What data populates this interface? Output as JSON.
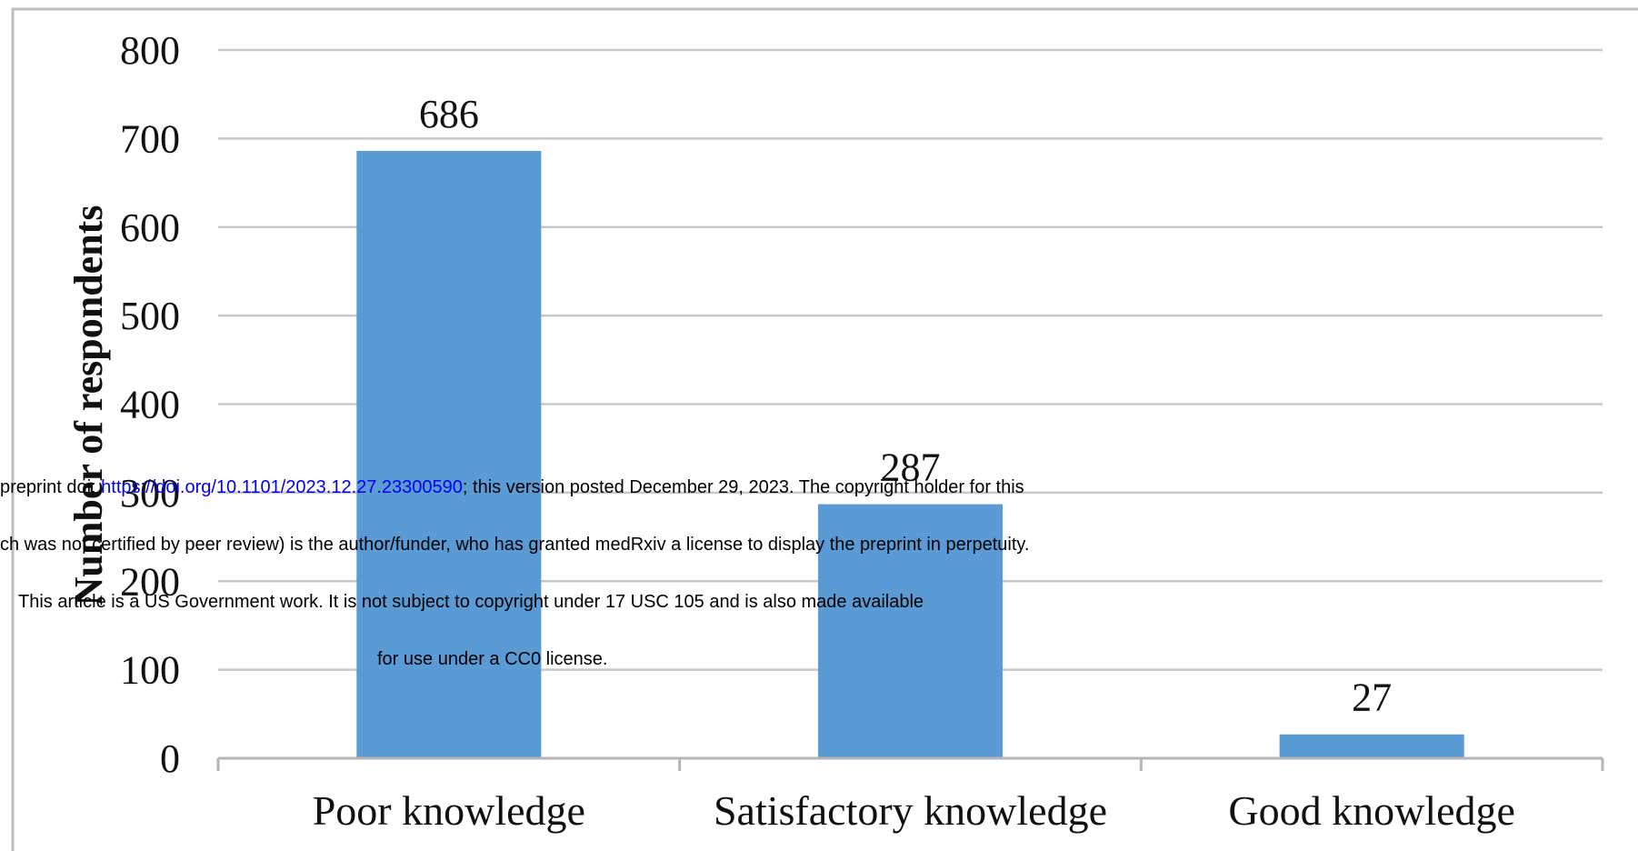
{
  "chart_data": {
    "type": "bar",
    "categories": [
      "Poor knowledge",
      "Satisfactory knowledge",
      "Good knowledge"
    ],
    "values": [
      686,
      287,
      27
    ],
    "data_labels": [
      "686",
      "287",
      "27"
    ],
    "ylabel": "Number of respondents",
    "xlabel": "",
    "ylim": [
      0,
      800
    ],
    "yticks": [
      0,
      100,
      200,
      300,
      400,
      500,
      600,
      700,
      800
    ],
    "grid": true,
    "bar_color": "#5b9bd5"
  },
  "watermark": {
    "line1_prefix": "preprint doi: ",
    "line1_link": "https://doi.org/10.1101/2023.12.27.23300590",
    "line1_suffix": "; this version posted December 29, 2023. The copyright holder for this",
    "line2": "ch was not certified by peer review) is the author/funder, who has granted medRxiv a license to display the preprint in perpetuity.",
    "line3": "This article is a US Government work. It is not subject to copyright under 17 USC 105 and is also made available",
    "line4": "for use under a CC0 license."
  }
}
